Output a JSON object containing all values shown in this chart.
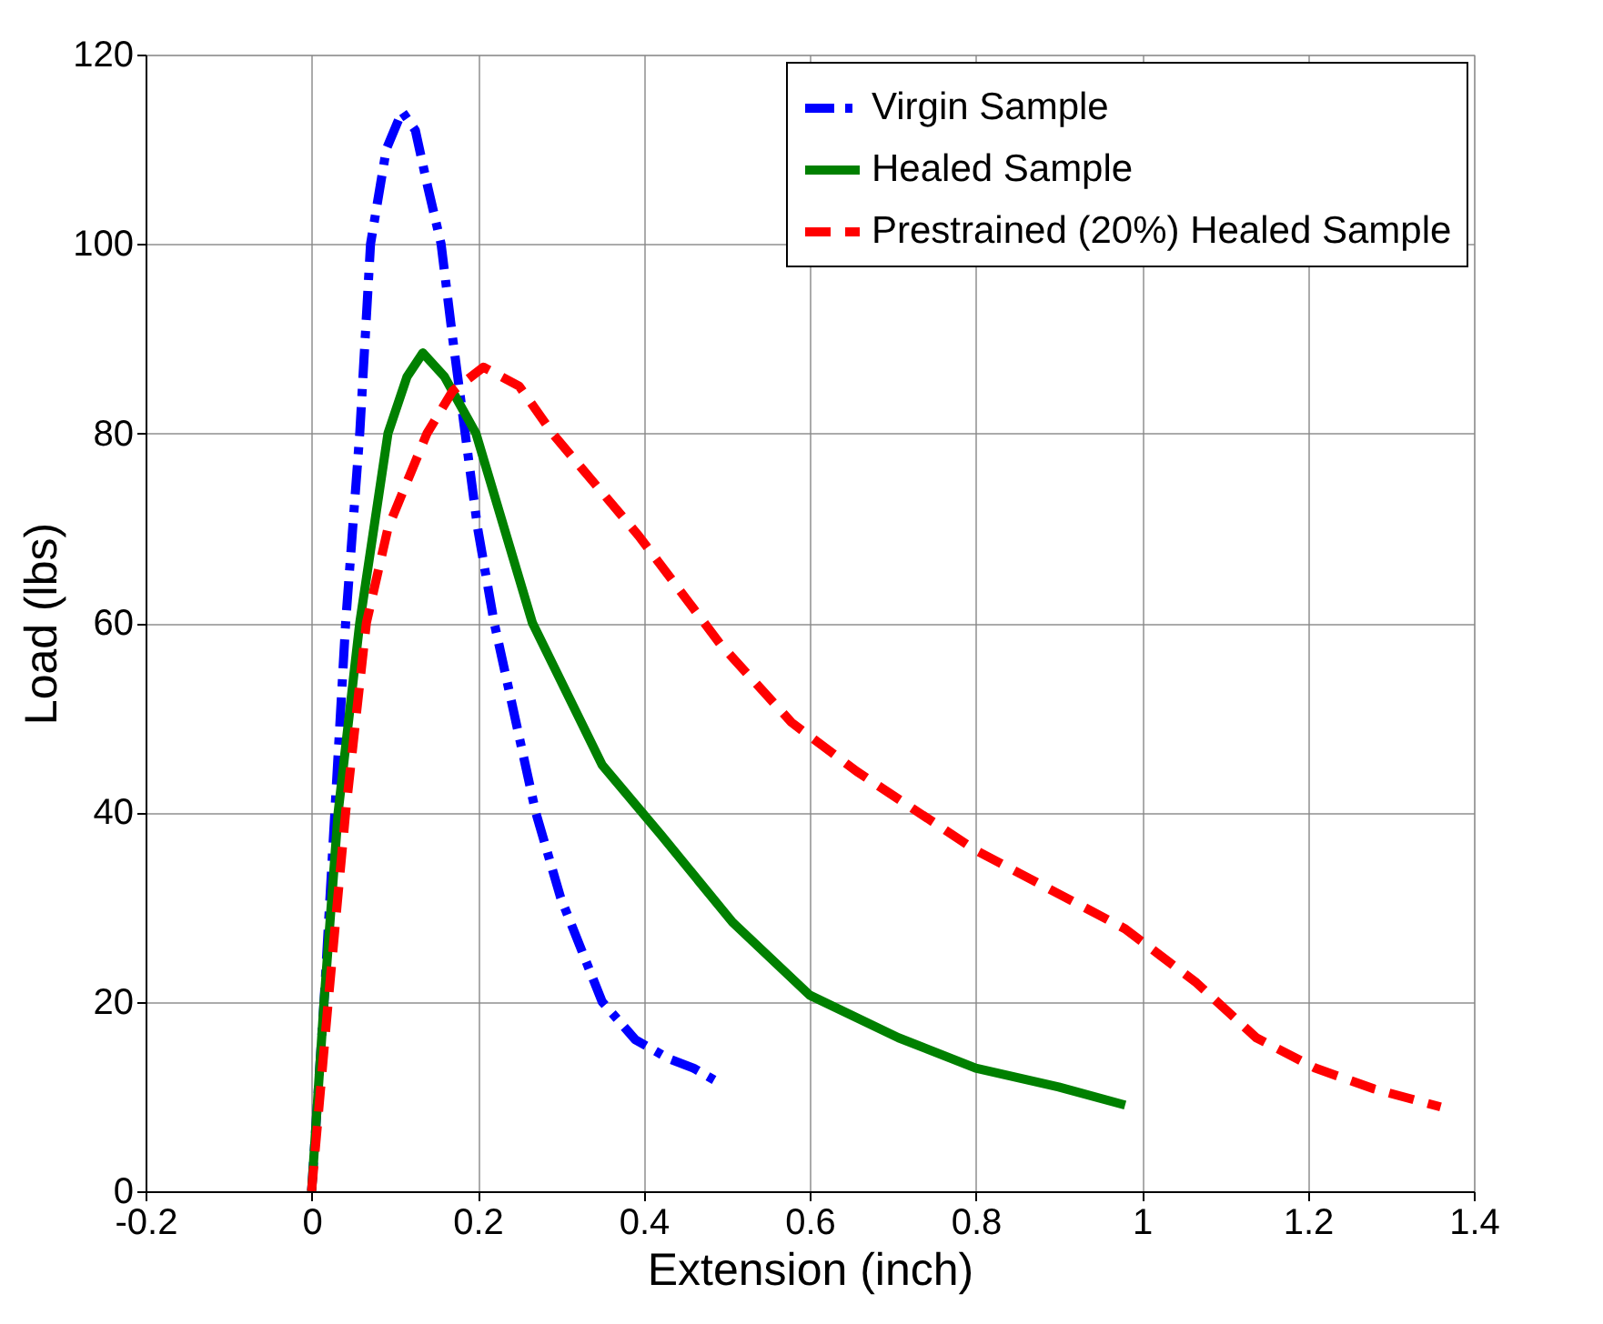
{
  "chart_data": {
    "type": "line",
    "xlabel": "Extension (inch)",
    "ylabel": "Load (lbs)",
    "xlim": [
      -0.2,
      1.4
    ],
    "xticks": [
      -0.2,
      0,
      0.2,
      0.4,
      0.6,
      0.8,
      1,
      1.2,
      1.4
    ],
    "ylim": [
      0,
      120
    ],
    "yticks": [
      0,
      20,
      40,
      60,
      80,
      100,
      120
    ],
    "grid": true,
    "legend": "top right",
    "marker": "none",
    "series": [
      {
        "name": "Virgin Sample",
        "color": "#0000ff",
        "line_style": "dashdot",
        "x": [
          0,
          0.015,
          0.028,
          0.041,
          0.058,
          0.071,
          0.09,
          0.109,
          0.125,
          0.14,
          0.156,
          0.17,
          0.185,
          0.2,
          0.22,
          0.245,
          0.27,
          0.3,
          0.35,
          0.39,
          0.43,
          0.46,
          0.488
        ],
        "values": [
          0,
          20,
          40,
          60,
          80,
          100,
          110,
          114,
          112,
          106,
          100,
          90,
          80,
          70,
          60,
          50,
          40,
          31,
          20,
          16,
          14,
          13,
          11.6
        ]
      },
      {
        "name": "Healed Sample",
        "color": "#008000",
        "line_style": "solid",
        "x": [
          0,
          0.015,
          0.032,
          0.058,
          0.092,
          0.115,
          0.134,
          0.16,
          0.198,
          0.266,
          0.35,
          0.421,
          0.507,
          0.6,
          0.707,
          0.8,
          0.9,
          0.98
        ],
        "values": [
          0,
          20,
          40,
          60,
          80,
          86,
          88.5,
          86,
          80,
          60,
          45,
          37.6,
          28.4,
          20.7,
          16.2,
          13,
          11,
          9.1
        ]
      },
      {
        "name": "Prestrained (20%) Healed Sample",
        "color": "#ff0000",
        "line_style": "dashed",
        "x": [
          0,
          0.02,
          0.041,
          0.066,
          0.092,
          0.139,
          0.17,
          0.207,
          0.25,
          0.292,
          0.394,
          0.492,
          0.578,
          0.657,
          0.8,
          0.98,
          1.066,
          1.138,
          1.209,
          1.28,
          1.36
        ],
        "values": [
          0,
          20,
          40,
          60,
          70,
          80,
          84.5,
          87,
          85,
          79.8,
          69.2,
          57.8,
          49.5,
          44.3,
          36,
          27.7,
          22,
          16.2,
          13,
          10.8,
          8.9
        ]
      }
    ]
  }
}
